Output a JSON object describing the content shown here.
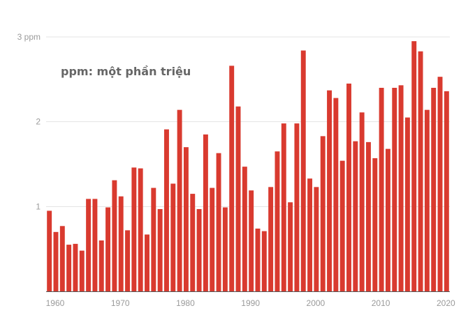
{
  "chart_data": {
    "type": "bar",
    "title": "",
    "annotation": "ppm: một phần triệu",
    "xlabel": "",
    "ylabel": "",
    "y_tick_labels": [
      "1",
      "2",
      "3 ppm"
    ],
    "y_ticks": [
      1,
      2,
      3
    ],
    "x_tick_labels": [
      "1960",
      "1970",
      "1980",
      "1990",
      "2000",
      "2010",
      "2020"
    ],
    "x_ticks": [
      1960,
      1970,
      1980,
      1990,
      2000,
      2010,
      2020
    ],
    "ylim": [
      0,
      3
    ],
    "grid": true,
    "bar_color": "#d93a2f",
    "categories": [
      1959,
      1960,
      1961,
      1962,
      1963,
      1964,
      1965,
      1966,
      1967,
      1968,
      1969,
      1970,
      1971,
      1972,
      1973,
      1974,
      1975,
      1976,
      1977,
      1978,
      1979,
      1980,
      1981,
      1982,
      1983,
      1984,
      1985,
      1986,
      1987,
      1988,
      1989,
      1990,
      1991,
      1992,
      1993,
      1994,
      1995,
      1996,
      1997,
      1998,
      1999,
      2000,
      2001,
      2002,
      2003,
      2004,
      2005,
      2006,
      2007,
      2008,
      2009,
      2010,
      2011,
      2012,
      2013,
      2014,
      2015,
      2016,
      2017,
      2018,
      2019,
      2020
    ],
    "values": [
      0.95,
      0.7,
      0.77,
      0.55,
      0.56,
      0.48,
      1.09,
      1.09,
      0.6,
      0.99,
      1.31,
      1.12,
      0.72,
      1.46,
      1.45,
      0.67,
      1.22,
      0.97,
      1.91,
      1.27,
      2.14,
      1.7,
      1.15,
      0.97,
      1.85,
      1.22,
      1.63,
      0.99,
      2.66,
      2.18,
      1.47,
      1.19,
      0.74,
      0.71,
      1.23,
      1.65,
      1.98,
      1.05,
      1.98,
      2.84,
      1.33,
      1.23,
      1.83,
      2.37,
      2.28,
      1.54,
      2.45,
      1.77,
      2.11,
      1.76,
      1.57,
      2.4,
      1.68,
      2.4,
      2.43,
      2.05,
      2.95,
      2.83,
      2.14,
      2.4,
      2.53,
      2.36
    ]
  }
}
